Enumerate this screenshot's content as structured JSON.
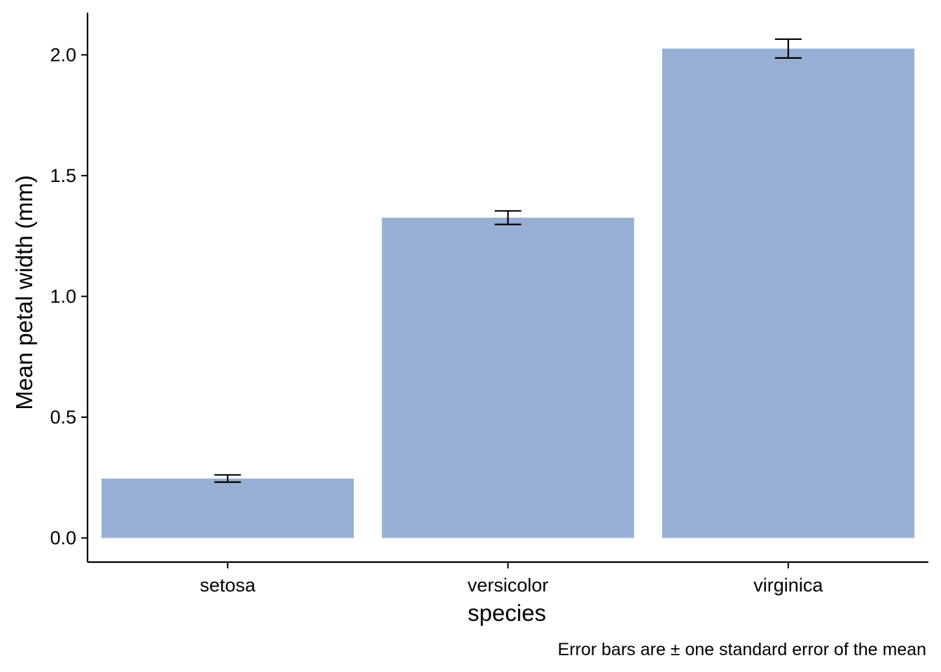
{
  "chart_data": {
    "type": "bar",
    "categories": [
      "setosa",
      "versicolor",
      "virginica"
    ],
    "values": [
      0.246,
      1.326,
      2.026
    ],
    "error_bars": {
      "lower": [
        0.231,
        1.298,
        1.987
      ],
      "upper": [
        0.261,
        1.354,
        2.065
      ]
    },
    "title": "",
    "xlabel": "species",
    "ylabel": "Mean petal width (mm)",
    "ylim": [
      -0.1,
      2.175
    ],
    "yticks": [
      0.0,
      0.5,
      1.0,
      1.5,
      2.0
    ],
    "ytick_labels": [
      "0.0",
      "0.5",
      "1.0",
      "1.5",
      "2.0"
    ],
    "caption": "Error bars are ± one standard error of the mean",
    "bar_color": "#97AFD4",
    "errorbar_color": "#000000",
    "axis_color": "#000000",
    "grid": false,
    "legend": "none"
  }
}
